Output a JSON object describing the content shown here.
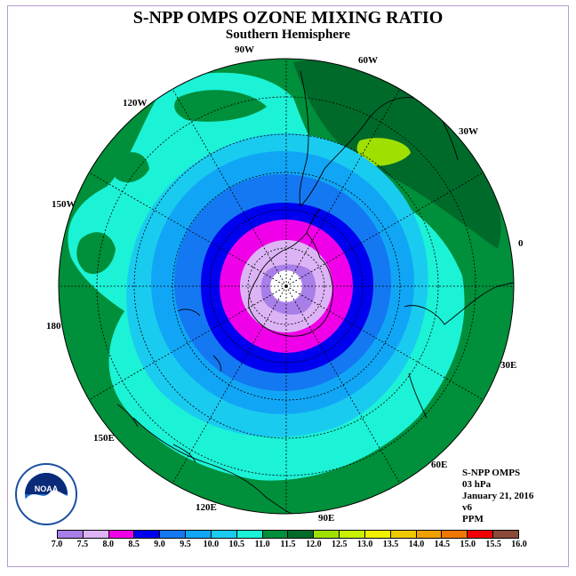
{
  "title": "S-NPP OMPS OZONE MIXING RATIO",
  "subtitle": "Southern Hemisphere",
  "lon_labels": [
    "90W",
    "60W",
    "30W",
    "0",
    "30E",
    "60E",
    "90E",
    "120E",
    "150E",
    "180",
    "150W",
    "120W"
  ],
  "logo": {
    "text": "NOAA"
  },
  "info": {
    "instrument": "S-NPP OMPS",
    "level": "03 hPa",
    "date": "January 21, 2016",
    "version": "v6",
    "units": "PPM"
  },
  "colorbar": {
    "ticks": [
      "7.0",
      "7.5",
      "8.0",
      "8.5",
      "9.0",
      "9.5",
      "10.0",
      "10.5",
      "11.0",
      "11.5",
      "12.0",
      "12.5",
      "13.0",
      "13.5",
      "14.0",
      "14.5",
      "15.0",
      "15.5",
      "16.0"
    ],
    "colors": [
      "#a87ee8",
      "#dcb4f5",
      "#f000e8",
      "#0000f0",
      "#1478f2",
      "#10a6f5",
      "#1acbf0",
      "#1cf2d6",
      "#008f3a",
      "#006a2b",
      "#a0e000",
      "#c8f000",
      "#f0f000",
      "#f0c800",
      "#f0a000",
      "#f07800",
      "#f00000",
      "#8b4a3a"
    ]
  }
}
